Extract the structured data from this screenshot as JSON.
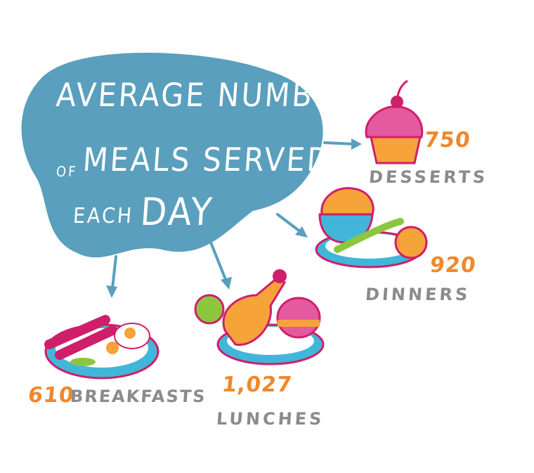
{
  "title": {
    "line1": "AVERAGE NUMBER",
    "line2_prefix": "OF",
    "line2": "MEALS SERVED",
    "line3a": "EACH",
    "line3b": "DAY"
  },
  "meals": [
    {
      "key": "desserts",
      "value": "750",
      "label": "DESSERTS"
    },
    {
      "key": "dinners",
      "value": "920",
      "label": "DINNERS"
    },
    {
      "key": "lunches",
      "value": "1,027",
      "label": "LUNCHES"
    },
    {
      "key": "breakfasts",
      "value": "610",
      "label": "BREAKFASTS"
    }
  ],
  "colors": {
    "blob": "#5a9fbd",
    "number": "#f0882a",
    "label": "#8b8b8b",
    "magenta": "#cf1f6a",
    "cyan": "#41b6d9",
    "green": "#8cc63f",
    "orange": "#f6a33a"
  }
}
